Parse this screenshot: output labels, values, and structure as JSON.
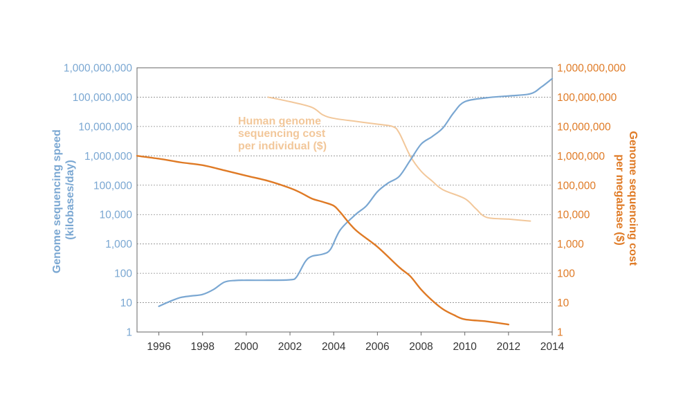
{
  "chart_data": {
    "type": "line",
    "x_ticks": [
      "1996",
      "1998",
      "2000",
      "2002",
      "2004",
      "2006",
      "2008",
      "2010",
      "2012",
      "2014"
    ],
    "xlim": [
      1995,
      2014
    ],
    "y_scale": "log",
    "left_axis": {
      "label_lines": [
        "Genome sequencing speed",
        "(kilobases/day)"
      ],
      "ticks": [
        "1",
        "10",
        "100",
        "1,000",
        "10,000",
        "100,000",
        "1,000,000",
        "10,000,000",
        "100,000,000",
        "1,000,000,000"
      ],
      "ylim": [
        1,
        1000000000
      ],
      "color": "#7aa7d2"
    },
    "right_axis": {
      "label_lines": [
        "Genome sequencing cost",
        "per megabase ($)"
      ],
      "ticks": [
        "1",
        "10",
        "100",
        "1,000",
        "10,000",
        "100,000",
        "1,000,000",
        "10,000,000",
        "100,000,000",
        "1,000,000,000"
      ],
      "ylim": [
        1,
        1000000000
      ],
      "color": "#df7a25"
    },
    "grid": "horizontal-dashed",
    "annotation": {
      "lines": [
        "Human genome",
        "sequencing cost",
        "per individual ($)"
      ],
      "color": "#f2c79a"
    },
    "series": [
      {
        "axis": "left",
        "color": "#7aa7d2",
        "points": [
          [
            1996,
            7.5
          ],
          [
            1996.5,
            11
          ],
          [
            1997,
            15
          ],
          [
            1997.5,
            17
          ],
          [
            1998,
            19
          ],
          [
            1998.5,
            28
          ],
          [
            1999,
            50
          ],
          [
            1999.5,
            57
          ],
          [
            2000,
            58
          ],
          [
            2001,
            58
          ],
          [
            2002,
            60
          ],
          [
            2002.3,
            75
          ],
          [
            2002.7,
            250
          ],
          [
            2003,
            380
          ],
          [
            2003.5,
            450
          ],
          [
            2003.85,
            650
          ],
          [
            2004.3,
            3000
          ],
          [
            2005,
            10000
          ],
          [
            2005.5,
            20000
          ],
          [
            2006,
            60000
          ],
          [
            2006.5,
            120000
          ],
          [
            2007,
            200000
          ],
          [
            2007.5,
            700000
          ],
          [
            2008,
            2500000
          ],
          [
            2008.5,
            4500000
          ],
          [
            2009,
            9000000
          ],
          [
            2009.5,
            30000000
          ],
          [
            2010,
            70000000
          ],
          [
            2011,
            95000000
          ],
          [
            2012,
            110000000
          ],
          [
            2013,
            130000000
          ],
          [
            2013.5,
            220000000
          ],
          [
            2014,
            430000000
          ]
        ]
      },
      {
        "axis": "right",
        "color": "#df7a25",
        "points": [
          [
            1995,
            1000000
          ],
          [
            1996,
            800000
          ],
          [
            1997,
            600000
          ],
          [
            1998,
            480000
          ],
          [
            1999,
            320000
          ],
          [
            2000,
            210000
          ],
          [
            2001,
            140000
          ],
          [
            2002,
            80000
          ],
          [
            2002.5,
            55000
          ],
          [
            2003,
            35000
          ],
          [
            2003.5,
            27000
          ],
          [
            2004,
            20000
          ],
          [
            2004.3,
            12000
          ],
          [
            2005,
            3000
          ],
          [
            2006,
            800
          ],
          [
            2007,
            160
          ],
          [
            2007.5,
            80
          ],
          [
            2008,
            28
          ],
          [
            2008.5,
            12
          ],
          [
            2009,
            6
          ],
          [
            2009.5,
            3.8
          ],
          [
            2010,
            2.7
          ],
          [
            2011,
            2.3
          ],
          [
            2012,
            1.8
          ]
        ]
      },
      {
        "axis": "right",
        "color": "#f2c79a",
        "points": [
          [
            2001,
            100000000
          ],
          [
            2002,
            70000000
          ],
          [
            2003,
            45000000
          ],
          [
            2003.5,
            25000000
          ],
          [
            2004,
            19000000
          ],
          [
            2005,
            15000000
          ],
          [
            2006,
            12000000
          ],
          [
            2006.7,
            10000000
          ],
          [
            2007,
            6000000
          ],
          [
            2007.5,
            1000000
          ],
          [
            2008,
            300000
          ],
          [
            2008.5,
            140000
          ],
          [
            2009,
            70000
          ],
          [
            2010,
            35000
          ],
          [
            2010.5,
            16000
          ],
          [
            2011,
            8000
          ],
          [
            2012,
            7000
          ],
          [
            2013,
            6000
          ]
        ]
      }
    ]
  }
}
